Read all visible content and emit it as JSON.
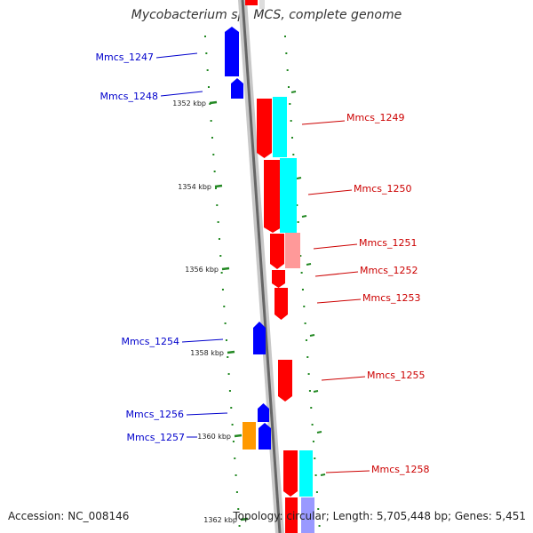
{
  "title": "Mycobacterium sp. MCS, complete genome",
  "accession": "Accession: NC_008146",
  "topology": "Topology: circular; Length: 5,705,448 bp; Genes: 5,451",
  "colors": {
    "backbone": "#888888",
    "minus_gene": "#0000ff",
    "plus_gene": "#ff0000",
    "cog": "#00ffff",
    "cog_light": "#ff9999",
    "cog_purple": "#9999ff",
    "cog_orange": "#ff9900",
    "tick": "#228822",
    "label_minus": "#0000cc",
    "label_plus": "#cc0000"
  },
  "ticks": [
    {
      "label": "1352 kbp"
    },
    {
      "label": "1354 kbp"
    },
    {
      "label": "1356 kbp"
    },
    {
      "label": "1358 kbp"
    },
    {
      "label": "1360 kbp"
    },
    {
      "label": "1362 kbp"
    }
  ],
  "genes": [
    {
      "name": "Mmcs_1247",
      "strand": "-"
    },
    {
      "name": "Mmcs_1248",
      "strand": "-"
    },
    {
      "name": "Mmcs_1249",
      "strand": "+"
    },
    {
      "name": "Mmcs_1250",
      "strand": "+"
    },
    {
      "name": "Mmcs_1251",
      "strand": "+"
    },
    {
      "name": "Mmcs_1252",
      "strand": "+"
    },
    {
      "name": "Mmcs_1253",
      "strand": "+"
    },
    {
      "name": "Mmcs_1254",
      "strand": "-"
    },
    {
      "name": "Mmcs_1255",
      "strand": "+"
    },
    {
      "name": "Mmcs_1256",
      "strand": "-"
    },
    {
      "name": "Mmcs_1257",
      "strand": "-"
    },
    {
      "name": "Mmcs_1258",
      "strand": "+"
    }
  ]
}
